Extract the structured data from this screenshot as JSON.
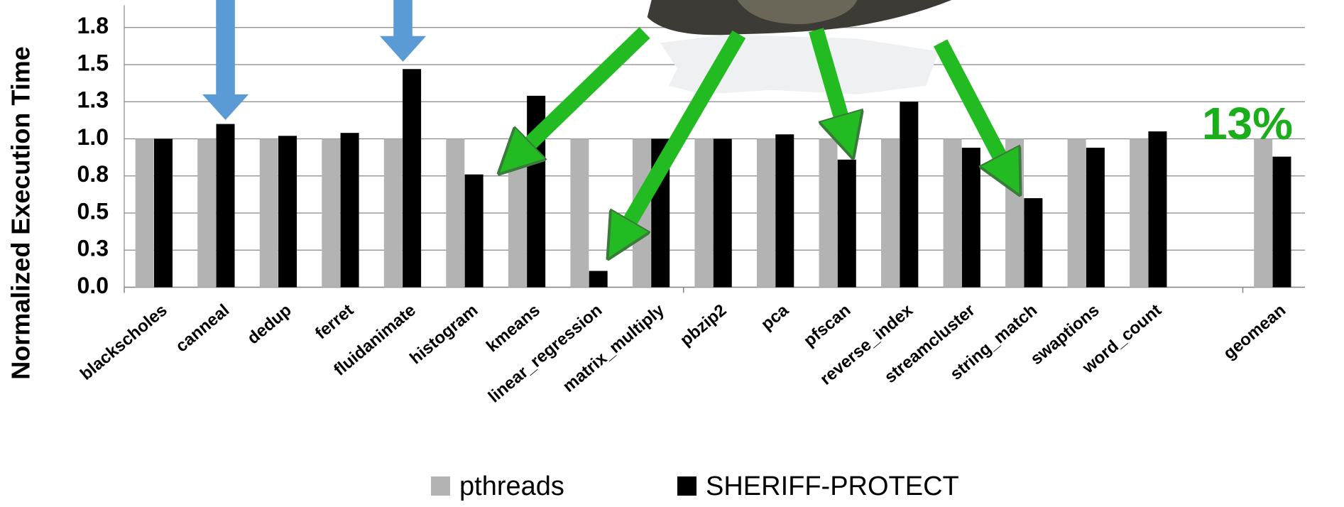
{
  "chart_data": {
    "type": "bar",
    "y_label": "Normalized Execution Time",
    "annotation": "13%",
    "categories": [
      "blackscholes",
      "canneal",
      "dedup",
      "ferret",
      "fluidanimate",
      "histogram",
      "kmeans",
      "linear_regression",
      "matrix_multiply",
      "pbzip2",
      "pca",
      "pfscan",
      "reverse_index",
      "streamcluster",
      "string_match",
      "swaptions",
      "word_count",
      null,
      "geomean"
    ],
    "series": [
      {
        "name": "pthreads",
        "color": "#b3b3b3",
        "values": [
          1.0,
          1.0,
          1.0,
          1.0,
          1.0,
          1.0,
          1.0,
          1.0,
          1.0,
          1.0,
          1.0,
          1.0,
          1.0,
          1.0,
          1.0,
          1.0,
          1.0,
          null,
          1.0
        ]
      },
      {
        "name": "SHERIFF-PROTECT",
        "color": "#000000",
        "values": [
          1.0,
          1.1,
          1.02,
          1.04,
          1.47,
          0.76,
          1.29,
          0.11,
          1.0,
          1.0,
          1.03,
          0.86,
          1.25,
          0.94,
          0.6,
          0.94,
          1.05,
          null,
          0.88
        ]
      }
    ],
    "ylim": [
      0,
      1.9
    ],
    "yticks": [
      {
        "value": 0,
        "label": "0.0"
      },
      {
        "value": 0.25,
        "label": "0.3"
      },
      0.5,
      {
        "value": 0.75,
        "label": "0.8"
      },
      {
        "value": 1.0,
        "label": "1.0"
      },
      {
        "value": 1.25,
        "label": "1.3"
      },
      1.5,
      {
        "value": 1.75,
        "label": "1.8"
      }
    ],
    "grid": true,
    "legend": "bottom"
  }
}
